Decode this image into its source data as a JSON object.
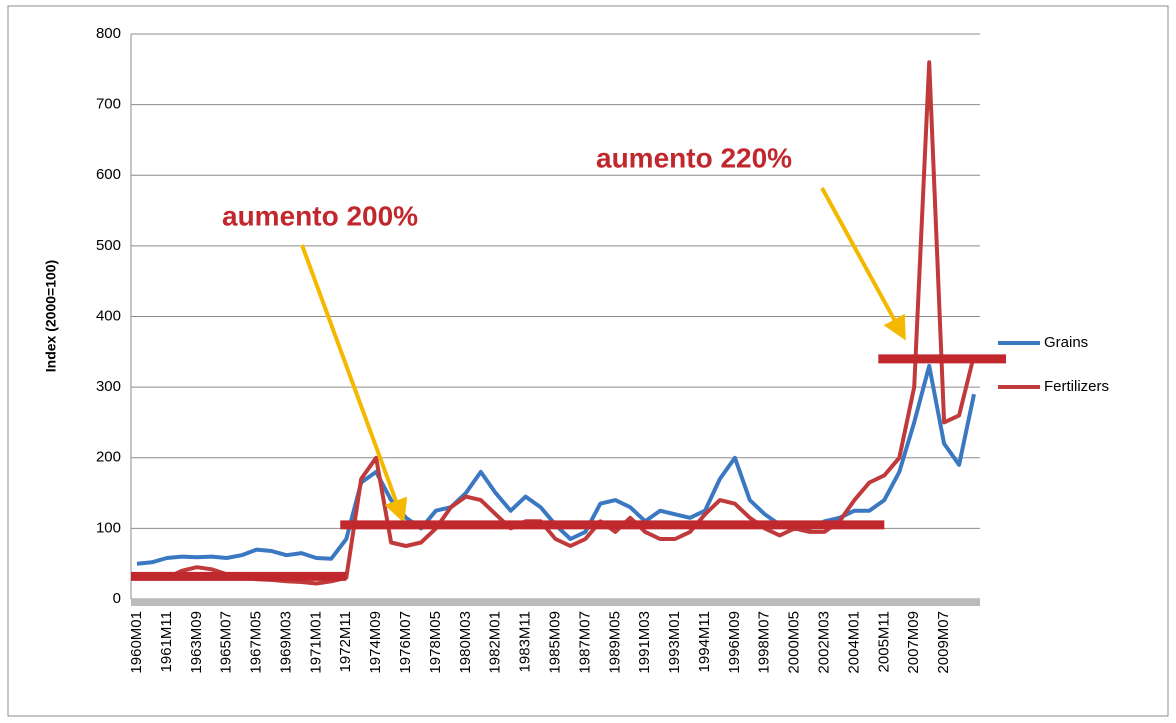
{
  "chart_data": {
    "type": "line",
    "y_label": "Index (2000=100)",
    "categories": [
      "1960M01",
      null,
      "1961M11",
      null,
      "1963M09",
      null,
      "1965M07",
      null,
      "1967M05",
      null,
      "1969M03",
      null,
      "1971M01",
      null,
      "1972M11",
      null,
      "1974M09",
      null,
      "1976M07",
      null,
      "1978M05",
      null,
      "1980M03",
      null,
      "1982M01",
      null,
      "1983M11",
      null,
      "1985M09",
      null,
      "1987M07",
      null,
      "1989M05",
      null,
      "1991M03",
      null,
      "1993M01",
      null,
      "1994M11",
      null,
      "1996M09",
      null,
      "1998M07",
      null,
      "2000M05",
      null,
      "2002M03",
      null,
      "2004M01",
      null,
      "2005M11",
      null,
      "2007M09",
      null,
      "2009M07",
      null,
      null
    ],
    "series": [
      {
        "name": "Grains",
        "color": "#3a78c2",
        "values": [
          50,
          52,
          58,
          60,
          59,
          60,
          58,
          62,
          70,
          68,
          62,
          65,
          58,
          57,
          85,
          165,
          180,
          140,
          115,
          100,
          125,
          130,
          150,
          180,
          150,
          125,
          145,
          130,
          105,
          85,
          95,
          135,
          140,
          130,
          110,
          125,
          120,
          115,
          125,
          170,
          200,
          140,
          120,
          105,
          100,
          100,
          110,
          115,
          125,
          125,
          140,
          180,
          250,
          330,
          220,
          190,
          290
        ]
      },
      {
        "name": "Fertilizers",
        "color": "#c0393b",
        "values": [
          30,
          30,
          30,
          40,
          45,
          42,
          35,
          30,
          28,
          27,
          25,
          24,
          22,
          25,
          30,
          170,
          200,
          80,
          75,
          80,
          100,
          130,
          145,
          140,
          120,
          100,
          110,
          110,
          85,
          75,
          85,
          110,
          95,
          115,
          95,
          85,
          85,
          95,
          120,
          140,
          135,
          115,
          100,
          90,
          100,
          95,
          95,
          110,
          140,
          165,
          175,
          200,
          300,
          760,
          250,
          260,
          345
        ]
      }
    ],
    "levels": [
      {
        "value": 32,
        "from": "1960M01",
        "to": "1972M11"
      },
      {
        "value": 105,
        "from": "1972M11",
        "to": "2005M11"
      },
      {
        "value": 340,
        "from": "2005M11",
        "to": "2009M07"
      }
    ],
    "level_color": "#c0282d",
    "annotations": [
      "aumento 200%",
      "aumento 220%"
    ],
    "ylim": [
      0,
      800
    ],
    "yticks": [
      0,
      100,
      200,
      300,
      400,
      500,
      600,
      700,
      800
    ],
    "grid": true,
    "legend": "right"
  }
}
